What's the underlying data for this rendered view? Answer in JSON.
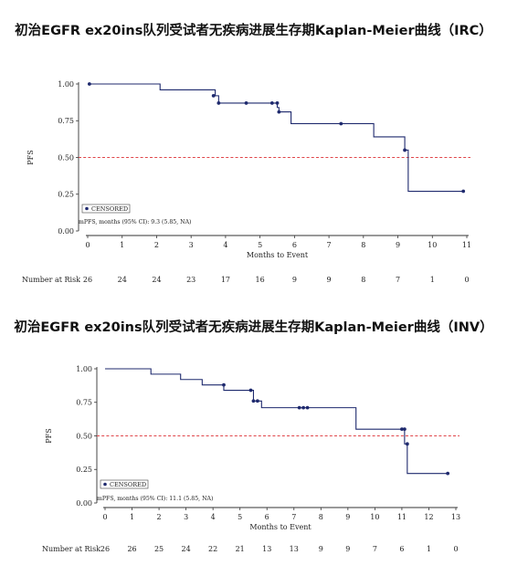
{
  "colors": {
    "curve": "#1f2a6e",
    "median_line": "#e0464a"
  },
  "chart_data": [
    {
      "type": "line",
      "title": "初治EGFR ex20ins队列受试者无疾病进展生存期Kaplan-Meier曲线（IRC）",
      "xlabel": "Months to Event",
      "ylabel": "PFS",
      "xlim": [
        0,
        11
      ],
      "ylim": [
        0,
        1
      ],
      "x_ticks": [
        0,
        1,
        2,
        3,
        4,
        5,
        6,
        7,
        8,
        9,
        10,
        11
      ],
      "y_ticks": [
        "0.00",
        "0.25",
        "0.50",
        "0.75",
        "1.00"
      ],
      "y_tick_values": [
        0,
        0.25,
        0.5,
        0.75,
        1.0
      ],
      "median_reference": 0.5,
      "legend": "CENSORED",
      "note": "mPFS, months (95% CI): 9.3 (5.85, NA)",
      "steps": [
        [
          0,
          1.0
        ],
        [
          2.1,
          0.96
        ],
        [
          3.7,
          0.92
        ],
        [
          3.8,
          0.87
        ],
        [
          5.5,
          0.84
        ],
        [
          5.55,
          0.81
        ],
        [
          5.9,
          0.73
        ],
        [
          8.3,
          0.64
        ],
        [
          9.2,
          0.55
        ],
        [
          9.3,
          0.27
        ],
        [
          10.9,
          0.27
        ]
      ],
      "censored": [
        [
          0.05,
          1.0
        ],
        [
          3.65,
          0.92
        ],
        [
          3.8,
          0.87
        ],
        [
          4.6,
          0.87
        ],
        [
          5.35,
          0.87
        ],
        [
          5.5,
          0.87
        ],
        [
          5.55,
          0.81
        ],
        [
          7.35,
          0.73
        ],
        [
          9.2,
          0.55
        ],
        [
          10.9,
          0.27
        ]
      ],
      "risk_label": "Number at Risk",
      "risk_counts": [
        "26",
        "24",
        "24",
        "23",
        "17",
        "16",
        "9",
        "9",
        "8",
        "7",
        "1",
        "0"
      ]
    },
    {
      "type": "line",
      "title": "初治EGFR ex20ins队列受试者无疾病进展生存期Kaplan-Meier曲线（INV）",
      "xlabel": "Months to Event",
      "ylabel": "PFS",
      "xlim": [
        0,
        13
      ],
      "ylim": [
        0,
        1
      ],
      "x_ticks": [
        0,
        1,
        2,
        3,
        4,
        5,
        6,
        7,
        8,
        9,
        10,
        11,
        12,
        13
      ],
      "y_ticks": [
        "0.00",
        "0.25",
        "0.50",
        "0.75",
        "1.00"
      ],
      "y_tick_values": [
        0,
        0.25,
        0.5,
        0.75,
        1.0
      ],
      "median_reference": 0.5,
      "legend": "CENSORED",
      "note": "mPFS, months (95% CI): 11.1 (5.85, NA)",
      "steps": [
        [
          0,
          1.0
        ],
        [
          1.7,
          0.96
        ],
        [
          2.8,
          0.92
        ],
        [
          3.6,
          0.88
        ],
        [
          4.4,
          0.84
        ],
        [
          5.5,
          0.76
        ],
        [
          5.8,
          0.71
        ],
        [
          9.3,
          0.55
        ],
        [
          11.1,
          0.44
        ],
        [
          11.2,
          0.22
        ],
        [
          12.7,
          0.22
        ]
      ],
      "censored": [
        [
          4.4,
          0.88
        ],
        [
          5.4,
          0.84
        ],
        [
          5.5,
          0.76
        ],
        [
          5.65,
          0.76
        ],
        [
          7.2,
          0.71
        ],
        [
          7.35,
          0.71
        ],
        [
          7.5,
          0.71
        ],
        [
          11.0,
          0.55
        ],
        [
          11.1,
          0.55
        ],
        [
          11.2,
          0.44
        ],
        [
          12.7,
          0.22
        ]
      ],
      "risk_label": "Number at Risk",
      "risk_counts": [
        "26",
        "26",
        "25",
        "24",
        "22",
        "21",
        "13",
        "13",
        "9",
        "9",
        "7",
        "6",
        "1",
        "0"
      ]
    }
  ]
}
